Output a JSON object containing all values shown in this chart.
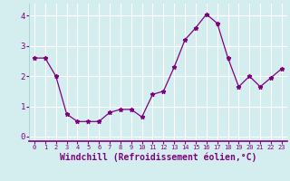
{
  "x": [
    0,
    1,
    2,
    3,
    4,
    5,
    6,
    7,
    8,
    9,
    10,
    11,
    12,
    13,
    14,
    15,
    16,
    17,
    18,
    19,
    20,
    21,
    22,
    23
  ],
  "y": [
    2.6,
    2.6,
    2.0,
    0.75,
    0.5,
    0.5,
    0.5,
    0.8,
    0.9,
    0.9,
    0.65,
    1.4,
    1.5,
    2.3,
    3.2,
    3.6,
    4.05,
    3.75,
    2.6,
    1.65,
    2.0,
    1.65,
    1.95,
    2.25
  ],
  "line_color": "#800080",
  "marker": "*",
  "marker_size": 3.5,
  "xlabel": "Windchill (Refroidissement éolien,°C)",
  "xlabel_fontsize": 7,
  "xtick_labels": [
    "0",
    "1",
    "2",
    "3",
    "4",
    "5",
    "6",
    "7",
    "8",
    "9",
    "10",
    "11",
    "12",
    "13",
    "14",
    "15",
    "16",
    "17",
    "18",
    "19",
    "20",
    "21",
    "22",
    "23"
  ],
  "ytick_labels": [
    "0",
    "1",
    "2",
    "3",
    "4"
  ],
  "ylim": [
    -0.15,
    4.4
  ],
  "xlim": [
    -0.5,
    23.5
  ],
  "background_color": "#d4eef0",
  "grid_color": "#b8dde0",
  "tick_color": "#800080",
  "label_color": "#800080",
  "spine_color": "#800080"
}
